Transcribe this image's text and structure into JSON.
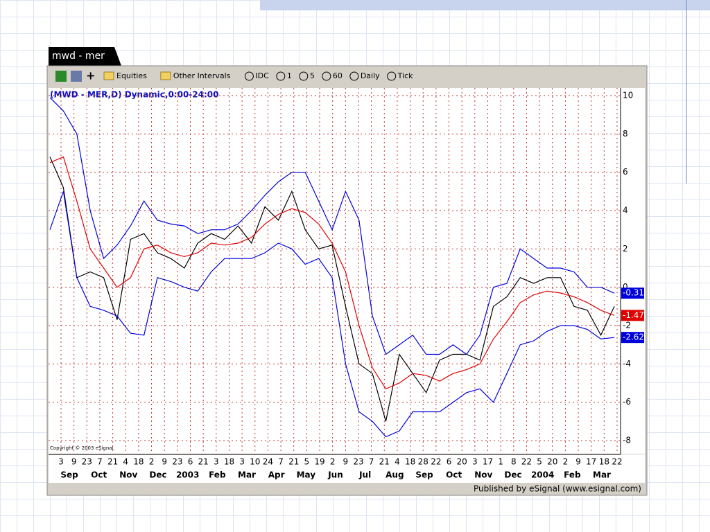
{
  "window_title": "mwd - mer",
  "toolbar": [
    "Equities",
    "Other Intervals",
    "IDC",
    "1",
    "5",
    "60",
    "Daily",
    "Tick"
  ],
  "copyright": "Copyright © 2003 eSignal.",
  "footer": "Published by eSignal (www.esignal.com)",
  "chart_data": {
    "type": "line",
    "title": "(MWD - MER,D) Dynamic,0:00-24:00",
    "day_labels": [
      "3",
      "9",
      "23",
      "7",
      "21",
      "4",
      "18",
      "2",
      "9",
      "23",
      "6",
      "21",
      "3",
      "18",
      "3",
      "10",
      "24",
      "7",
      "21",
      "5",
      "19",
      "2",
      "9",
      "23",
      "7",
      "21",
      "4",
      "18",
      "28",
      "22",
      "6",
      "20",
      "3",
      "17",
      "1",
      "8",
      "22",
      "5",
      "20",
      "2",
      "9",
      "17",
      "18",
      "22"
    ],
    "month_labels": [
      "Sep",
      "Oct",
      "Nov",
      "Dec",
      "2003",
      "Feb",
      "Mar",
      "Apr",
      "May",
      "Jun",
      "Jul",
      "Aug",
      "Sep",
      "Oct",
      "Nov",
      "Dec",
      "2004",
      "Feb",
      "Mar"
    ],
    "ylim": [
      -8,
      10
    ],
    "yticks": [
      -8,
      -6,
      -4,
      -2,
      0,
      2,
      4,
      6,
      8,
      10
    ],
    "grid": true,
    "series": [
      {
        "name": "MWD - MER",
        "color": "#000000",
        "values": [
          6.8,
          5.2,
          0.5,
          0.8,
          0.5,
          -1.7,
          2.5,
          2.8,
          1.8,
          1.5,
          1.0,
          2.3,
          2.8,
          2.5,
          3.2,
          2.3,
          4.2,
          3.5,
          5.0,
          3.0,
          2.0,
          2.2,
          -1.0,
          -4.0,
          -4.5,
          -7.0,
          -3.5,
          -4.5,
          -5.5,
          -3.8,
          -3.5,
          -3.5,
          -3.8,
          -1.0,
          -0.5,
          0.5,
          0.2,
          0.5,
          0.5,
          -1.0,
          -1.2,
          -2.5,
          -1.0
        ]
      },
      {
        "name": "Middle",
        "color": "#e00000",
        "values": [
          6.5,
          6.8,
          4.5,
          2.0,
          1.0,
          0.0,
          0.5,
          2.0,
          2.2,
          1.8,
          1.6,
          1.8,
          2.3,
          2.2,
          2.3,
          2.6,
          3.3,
          3.8,
          4.1,
          3.9,
          3.3,
          2.3,
          0.8,
          -2.0,
          -4.2,
          -5.3,
          -5.0,
          -4.5,
          -4.6,
          -4.9,
          -4.5,
          -4.3,
          -4.0,
          -2.7,
          -1.8,
          -0.8,
          -0.4,
          -0.2,
          -0.3,
          -0.5,
          -0.8,
          -1.2,
          -1.47
        ]
      },
      {
        "name": "Upper",
        "color": "#0000dd",
        "values": [
          9.9,
          9.2,
          8.0,
          4.0,
          1.5,
          2.2,
          3.2,
          4.5,
          3.5,
          3.3,
          3.2,
          2.8,
          3.0,
          3.0,
          3.3,
          4.0,
          4.8,
          5.5,
          6.0,
          6.0,
          4.5,
          3.0,
          5.0,
          3.5,
          -1.5,
          -3.5,
          -3.0,
          -2.5,
          -3.5,
          -3.5,
          -3.0,
          -3.5,
          -2.5,
          0.0,
          0.2,
          2.0,
          1.5,
          1.0,
          1.0,
          0.8,
          0.0,
          0.0,
          -0.31
        ]
      },
      {
        "name": "Lower",
        "color": "#0000dd",
        "values": [
          3.0,
          5.0,
          0.5,
          -1.0,
          -1.2,
          -1.5,
          -2.4,
          -2.5,
          0.5,
          0.3,
          0.0,
          -0.2,
          0.8,
          1.5,
          1.5,
          1.5,
          1.8,
          2.3,
          2.0,
          1.2,
          1.5,
          0.5,
          -4.0,
          -6.5,
          -7.0,
          -7.8,
          -7.5,
          -6.5,
          -6.5,
          -6.5,
          -6.0,
          -5.5,
          -5.3,
          -6.0,
          -4.5,
          -3.0,
          -2.8,
          -2.3,
          -2.0,
          -2.0,
          -2.2,
          -2.7,
          -2.62
        ]
      }
    ]
  }
}
